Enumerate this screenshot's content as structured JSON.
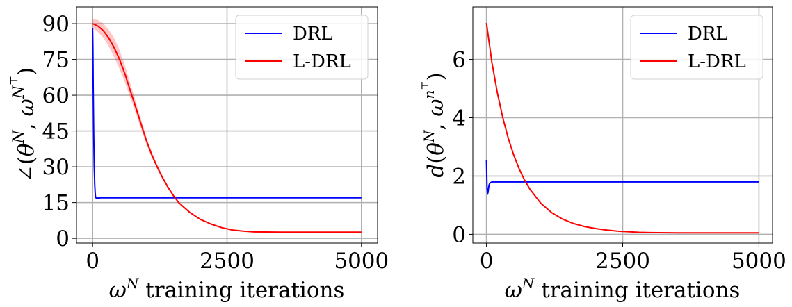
{
  "chart_data": [
    {
      "type": "line",
      "title": "",
      "xlabel": "ω^N training iterations",
      "ylabel": "∠(θ^N, ω^{N^⊤})",
      "xlim": [
        -300,
        5300
      ],
      "ylim": [
        -2,
        97
      ],
      "xticks": [
        0,
        2500,
        5000
      ],
      "yticks": [
        0,
        15,
        30,
        45,
        60,
        75,
        90
      ],
      "grid": true,
      "legend_position": "top-right",
      "series": [
        {
          "name": "DRL",
          "color": "#0000ff",
          "x": [
            0,
            5,
            10,
            20,
            30,
            40,
            50,
            60,
            80,
            100,
            150,
            200,
            300,
            500,
            1000,
            2000,
            3000,
            4000,
            5000
          ],
          "y": [
            88,
            80,
            65,
            45,
            30,
            22,
            18,
            17,
            16.8,
            16.9,
            17,
            17,
            17,
            17,
            17,
            17,
            17,
            17,
            17
          ]
        },
        {
          "name": "L-DRL",
          "color": "#ff0000",
          "x": [
            0,
            100,
            200,
            300,
            400,
            500,
            600,
            700,
            800,
            900,
            1000,
            1100,
            1200,
            1300,
            1400,
            1500,
            1600,
            1800,
            2000,
            2200,
            2400,
            2600,
            2800,
            3000,
            3500,
            4000,
            4500,
            5000
          ],
          "y": [
            90,
            89,
            87,
            84,
            80,
            75,
            69,
            62,
            55,
            48,
            41,
            35,
            30,
            25.5,
            21.5,
            18,
            15,
            11,
            8,
            6,
            4.5,
            3.5,
            3,
            2.7,
            2.6,
            2.6,
            2.6,
            2.6
          ],
          "band": [
            2,
            2.5,
            3,
            3.5,
            4,
            4,
            3.5,
            3,
            2.5,
            2,
            1.5,
            1.2,
            1,
            0.8,
            0.6,
            0.5,
            0.4,
            0.3,
            0.2,
            0.15,
            0.1,
            0.1,
            0.1,
            0.1,
            0.1,
            0.1,
            0.1,
            0.1
          ]
        }
      ]
    },
    {
      "type": "line",
      "title": "",
      "xlabel": "ω^N training iterations",
      "ylabel": "d(θ^N, ω^{n^⊤})",
      "xlim": [
        -250,
        5250
      ],
      "ylim": [
        -0.3,
        7.8
      ],
      "xticks": [
        0,
        2500,
        5000
      ],
      "yticks": [
        0,
        2,
        4,
        6
      ],
      "grid": true,
      "legend_position": "top-right",
      "series": [
        {
          "name": "DRL",
          "color": "#0000ff",
          "x": [
            0,
            5,
            10,
            20,
            30,
            40,
            50,
            60,
            80,
            100,
            150,
            200,
            300,
            500,
            1000,
            2000,
            3000,
            4000,
            5000
          ],
          "y": [
            2.55,
            2.1,
            1.6,
            1.38,
            1.45,
            1.6,
            1.7,
            1.75,
            1.78,
            1.8,
            1.8,
            1.8,
            1.8,
            1.8,
            1.8,
            1.8,
            1.8,
            1.8,
            1.8
          ]
        },
        {
          "name": "L-DRL",
          "color": "#ff0000",
          "x": [
            0,
            100,
            200,
            300,
            400,
            500,
            600,
            700,
            800,
            1000,
            1200,
            1400,
            1600,
            1800,
            2000,
            2200,
            2400,
            2600,
            2800,
            3000,
            3500,
            4000,
            4500,
            5000
          ],
          "y": [
            7.25,
            5.9,
            4.85,
            4.0,
            3.3,
            2.72,
            2.25,
            1.86,
            1.54,
            1.06,
            0.74,
            0.52,
            0.37,
            0.27,
            0.2,
            0.15,
            0.11,
            0.09,
            0.07,
            0.06,
            0.05,
            0.05,
            0.05,
            0.05
          ]
        }
      ]
    }
  ]
}
